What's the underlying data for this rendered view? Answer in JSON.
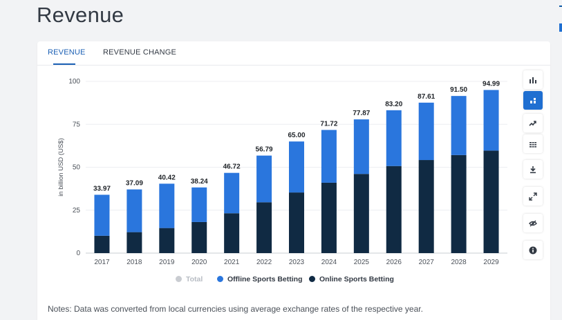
{
  "page": {
    "title": "Revenue"
  },
  "tabs": [
    {
      "label": "Revenue",
      "active": true
    },
    {
      "label": "Revenue change",
      "active": false
    }
  ],
  "chart_data": {
    "type": "bar",
    "stacked": true,
    "categories": [
      "2017",
      "2018",
      "2019",
      "2020",
      "2021",
      "2022",
      "2023",
      "2024",
      "2025",
      "2026",
      "2027",
      "2028",
      "2029"
    ],
    "series": [
      {
        "name": "Online Sports Betting",
        "color": "#102a43",
        "values": [
          10.1,
          12.2,
          14.6,
          18.1,
          23.2,
          29.6,
          35.3,
          41.0,
          46.1,
          50.7,
          54.2,
          57.1,
          59.7
        ]
      },
      {
        "name": "Offline Sports Betting",
        "color": "#2a76dd",
        "values": [
          23.87,
          24.89,
          25.82,
          20.14,
          23.52,
          27.19,
          29.7,
          30.72,
          31.77,
          32.5,
          33.41,
          34.4,
          35.29
        ]
      }
    ],
    "totals": [
      "33.97",
      "37.09",
      "40.42",
      "38.24",
      "46.72",
      "56.79",
      "65.00",
      "71.72",
      "77.87",
      "83.20",
      "87.61",
      "91.50",
      "94.99"
    ],
    "total_series": {
      "name": "Total",
      "color": "#c9ccd1"
    },
    "ylabel": "in billion USD (US$)",
    "ylim": [
      0,
      100
    ],
    "yticks": [
      "0",
      "25",
      "50",
      "75",
      "100"
    ],
    "grid": true,
    "legend_position": "bottom-center"
  },
  "legend": {
    "total": "Total",
    "offline": "Offline Sports Betting",
    "online": "Online Sports Betting"
  },
  "notes": "Notes: Data was converted from local currencies using average exchange rates of the respective year.",
  "toolbar": {
    "icons": [
      "bar-chart-icon",
      "stacked-bar-icon",
      "trend-line-icon",
      "table-icon",
      "download-icon",
      "expand-icon",
      "hide-icon",
      "info-icon"
    ],
    "active_color": "#1f6fd1"
  }
}
